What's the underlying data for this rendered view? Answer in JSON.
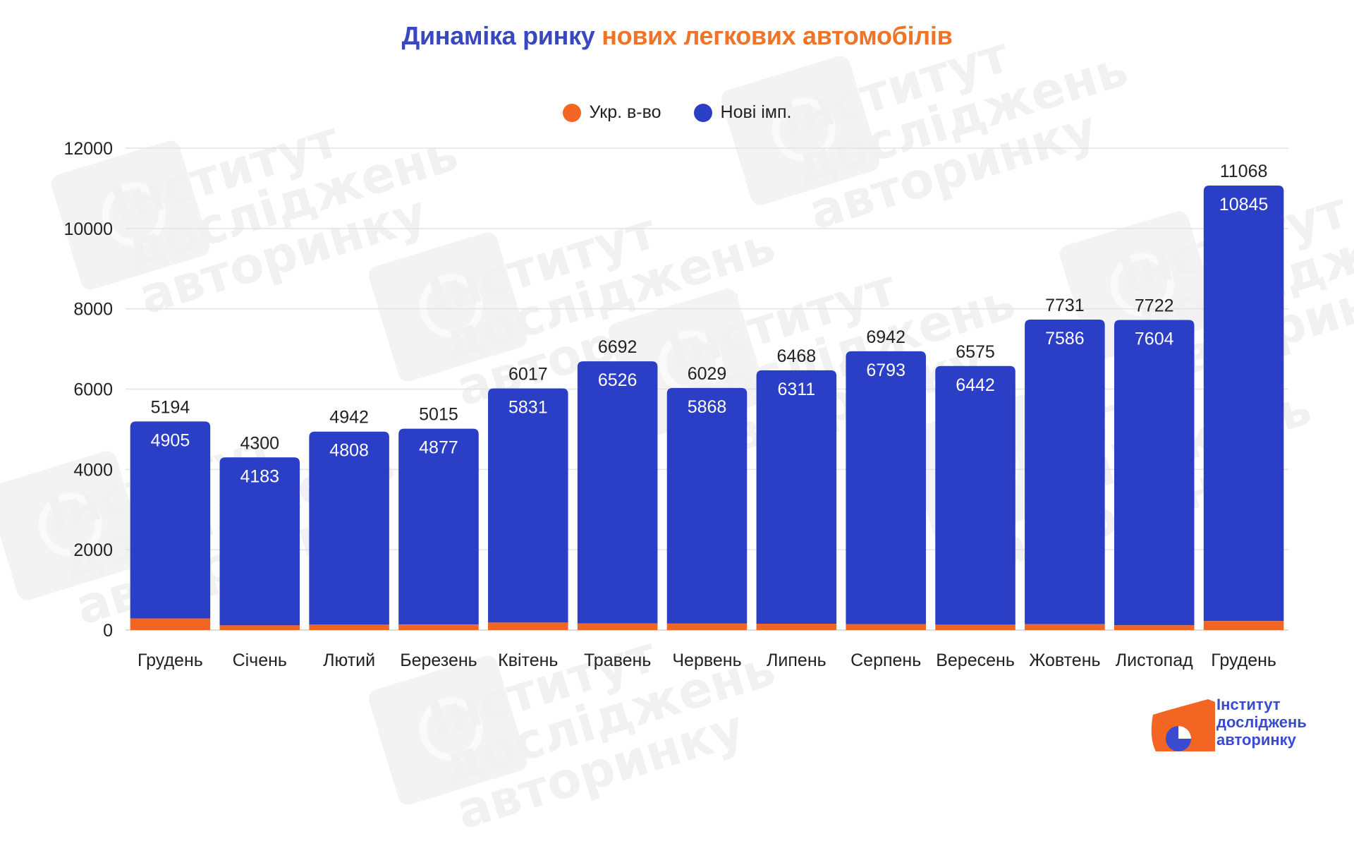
{
  "title": {
    "part1": "Динаміка ринку",
    "part2": "нових легкових автомобілів"
  },
  "legend": [
    {
      "label": "Укр. в-во",
      "color": "#f26522"
    },
    {
      "label": "Нові імп.",
      "color": "#2b3ec6"
    }
  ],
  "watermark_text": [
    "Інститут",
    "досліджень",
    "авторинку"
  ],
  "logo": {
    "lines": [
      "Інститут",
      "досліджень",
      "авторинку"
    ]
  },
  "chart_data": {
    "type": "bar",
    "stacked": true,
    "categories": [
      "Грудень",
      "Січень",
      "Лютий",
      "Березень",
      "Квітень",
      "Травень",
      "Червень",
      "Липень",
      "Серпень",
      "Вересень",
      "Жовтень",
      "Листопад",
      "Грудень"
    ],
    "series": [
      {
        "name": "Укр. в-во",
        "color": "#f26522",
        "values": [
          289,
          117,
          134,
          138,
          186,
          166,
          161,
          157,
          149,
          133,
          145,
          118,
          223
        ]
      },
      {
        "name": "Нові імп.",
        "color": "#2b3ec6",
        "values": [
          4905,
          4183,
          4808,
          4877,
          5831,
          6526,
          5868,
          6311,
          6793,
          6442,
          7586,
          7604,
          10845
        ]
      }
    ],
    "totals": [
      5194,
      4300,
      4942,
      5015,
      6017,
      6692,
      6029,
      6468,
      6942,
      6575,
      7731,
      7722,
      11068
    ],
    "yticks": [
      0,
      2000,
      4000,
      6000,
      8000,
      10000,
      12000
    ],
    "ylim": [
      0,
      12000
    ],
    "grid": true,
    "legend_position": "top-center"
  }
}
